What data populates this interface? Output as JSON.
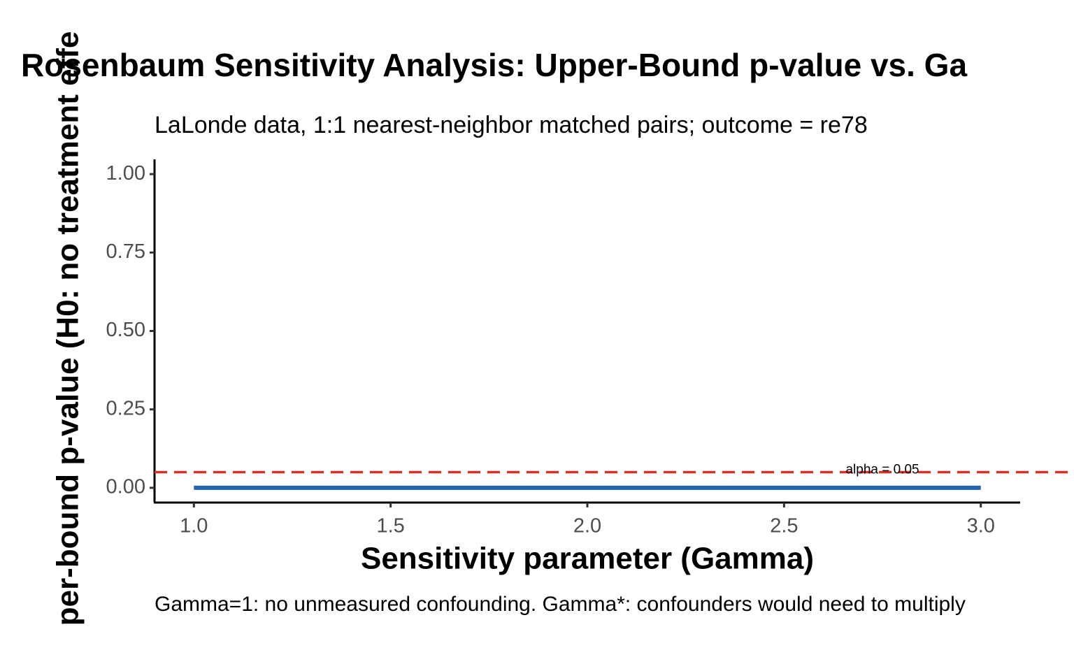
{
  "chart_data": {
    "type": "line",
    "title": "Rosenbaum Sensitivity Analysis: Upper-Bound p-value vs. Ga",
    "subtitle": "LaLonde data, 1:1 nearest-neighbor matched pairs; outcome = re78",
    "x_label": "Sensitivity parameter (Gamma)",
    "y_label": "per-bound p-value (H0: no treatment effe",
    "caption": "Gamma=1: no unmeasured confounding. Gamma*: confounders would need to multiply",
    "x": [
      1.0,
      1.5,
      2.0,
      2.5,
      3.0
    ],
    "series": [
      {
        "color": "#2166ac",
        "values": [
          0,
          0,
          0,
          0,
          0
        ]
      }
    ],
    "reference_line": {
      "value": 0.05,
      "color": "#d73027",
      "label": "alpha = 0.05",
      "label_x": 2.75
    },
    "xlim": [
      0.9,
      3.1
    ],
    "ylim": [
      -0.047,
      1.047
    ],
    "xticks": [
      {
        "value": 1.0,
        "label": "1.0"
      },
      {
        "value": 1.5,
        "label": "1.5"
      },
      {
        "value": 2.0,
        "label": "2.0"
      },
      {
        "value": 2.5,
        "label": "2.5"
      },
      {
        "value": 3.0,
        "label": "3.0"
      }
    ],
    "yticks": [
      {
        "value": 0,
        "label": "0.00"
      },
      {
        "value": 0.25,
        "label": "0.25"
      },
      {
        "value": 0.5,
        "label": "0.50"
      },
      {
        "value": 0.75,
        "label": "0.75"
      },
      {
        "value": 1,
        "label": "1.00"
      }
    ],
    "grid": false
  }
}
